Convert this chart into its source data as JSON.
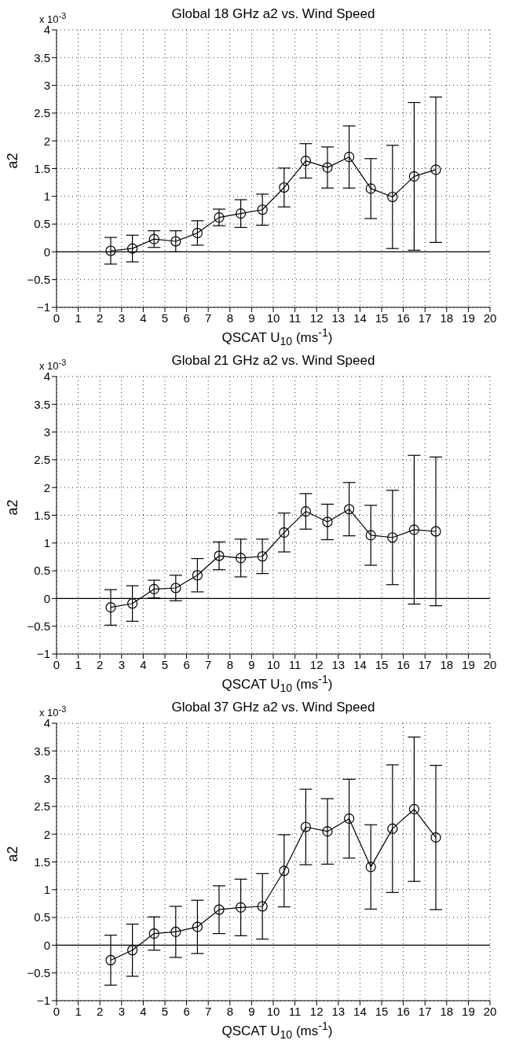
{
  "chart_data": [
    {
      "type": "line",
      "title": "Global 18 GHz a2 vs. Wind Speed",
      "xlabel": "QSCAT U$_{10}$ (ms$^{-1}$)",
      "ylabel": "a2",
      "annotations": [
        "x 10$^{-3}$"
      ],
      "x": [
        2.5,
        3.5,
        4.5,
        5.5,
        6.5,
        7.5,
        8.5,
        9.5,
        10.5,
        11.5,
        12.5,
        13.5,
        14.5,
        15.5,
        16.5,
        17.5
      ],
      "series": [
        {
          "color": "#000000",
          "values": [
            0.02,
            0.06,
            0.23,
            0.19,
            0.34,
            0.62,
            0.69,
            0.76,
            1.16,
            1.64,
            1.52,
            1.71,
            1.14,
            0.99,
            1.36,
            1.48
          ],
          "errors": [
            0.24,
            0.24,
            0.15,
            0.19,
            0.22,
            0.15,
            0.25,
            0.28,
            0.35,
            0.31,
            0.37,
            0.56,
            0.54,
            0.93,
            1.33,
            1.31
          ]
        }
      ],
      "xlim": [
        0,
        20
      ],
      "xticks": [
        0,
        1,
        2,
        3,
        4,
        5,
        6,
        7,
        8,
        9,
        10,
        11,
        12,
        13,
        14,
        15,
        16,
        17,
        18,
        19,
        20
      ],
      "ylim": [
        -1,
        4
      ],
      "yticks": [
        -1,
        -0.5,
        0,
        0.5,
        1,
        1.5,
        2,
        2.5,
        3,
        3.5,
        4
      ],
      "ref_lines": [
        {
          "axis": "y",
          "value": 0,
          "color": "#000000"
        }
      ],
      "grid": true,
      "legend": false,
      "marker": "circle",
      "line_style": "solid"
    },
    {
      "type": "line",
      "title": "Global 21 GHz a2 vs. Wind Speed",
      "xlabel": "QSCAT U$_{10}$ (ms$^{-1}$)",
      "ylabel": "a2",
      "annotations": [
        "x 10$^{-3}$"
      ],
      "x": [
        2.5,
        3.5,
        4.5,
        5.5,
        6.5,
        7.5,
        8.5,
        9.5,
        10.5,
        11.5,
        12.5,
        13.5,
        14.5,
        15.5,
        16.5,
        17.5
      ],
      "series": [
        {
          "color": "#000000",
          "values": [
            -0.16,
            -0.09,
            0.17,
            0.19,
            0.42,
            0.77,
            0.73,
            0.76,
            1.19,
            1.57,
            1.38,
            1.61,
            1.14,
            1.1,
            1.24,
            1.21
          ],
          "errors": [
            0.32,
            0.32,
            0.16,
            0.23,
            0.3,
            0.25,
            0.34,
            0.31,
            0.35,
            0.32,
            0.32,
            0.48,
            0.54,
            0.85,
            1.34,
            1.34
          ]
        }
      ],
      "xlim": [
        0,
        20
      ],
      "xticks": [
        0,
        1,
        2,
        3,
        4,
        5,
        6,
        7,
        8,
        9,
        10,
        11,
        12,
        13,
        14,
        15,
        16,
        17,
        18,
        19,
        20
      ],
      "ylim": [
        -1,
        4
      ],
      "yticks": [
        -1,
        -0.5,
        0,
        0.5,
        1,
        1.5,
        2,
        2.5,
        3,
        3.5,
        4
      ],
      "ref_lines": [
        {
          "axis": "y",
          "value": 0,
          "color": "#000000"
        }
      ],
      "grid": true,
      "legend": false,
      "marker": "circle",
      "line_style": "solid"
    },
    {
      "type": "line",
      "title": "Global 37 GHz a2 vs. Wind Speed",
      "xlabel": "QSCAT U$_{10}$ (ms$^{-1}$)",
      "ylabel": "a2",
      "annotations": [
        "x 10$^{-3}$"
      ],
      "x": [
        2.5,
        3.5,
        4.5,
        5.5,
        6.5,
        7.5,
        8.5,
        9.5,
        10.5,
        11.5,
        12.5,
        13.5,
        14.5,
        15.5,
        16.5,
        17.5
      ],
      "series": [
        {
          "color": "#000000",
          "values": [
            -0.27,
            -0.09,
            0.21,
            0.24,
            0.33,
            0.64,
            0.68,
            0.7,
            1.34,
            2.13,
            2.05,
            2.28,
            1.41,
            2.1,
            2.45,
            1.94
          ],
          "errors": [
            0.45,
            0.47,
            0.3,
            0.46,
            0.48,
            0.43,
            0.51,
            0.59,
            0.65,
            0.68,
            0.59,
            0.71,
            0.76,
            1.15,
            1.3,
            1.3
          ]
        }
      ],
      "xlim": [
        0,
        20
      ],
      "xticks": [
        0,
        1,
        2,
        3,
        4,
        5,
        6,
        7,
        8,
        9,
        10,
        11,
        12,
        13,
        14,
        15,
        16,
        17,
        18,
        19,
        20
      ],
      "ylim": [
        -1,
        4
      ],
      "yticks": [
        -1,
        -0.5,
        0,
        0.5,
        1,
        1.5,
        2,
        2.5,
        3,
        3.5,
        4
      ],
      "ref_lines": [
        {
          "axis": "y",
          "value": 0,
          "color": "#000000"
        }
      ],
      "grid": true,
      "legend": false,
      "marker": "circle",
      "line_style": "solid"
    }
  ]
}
